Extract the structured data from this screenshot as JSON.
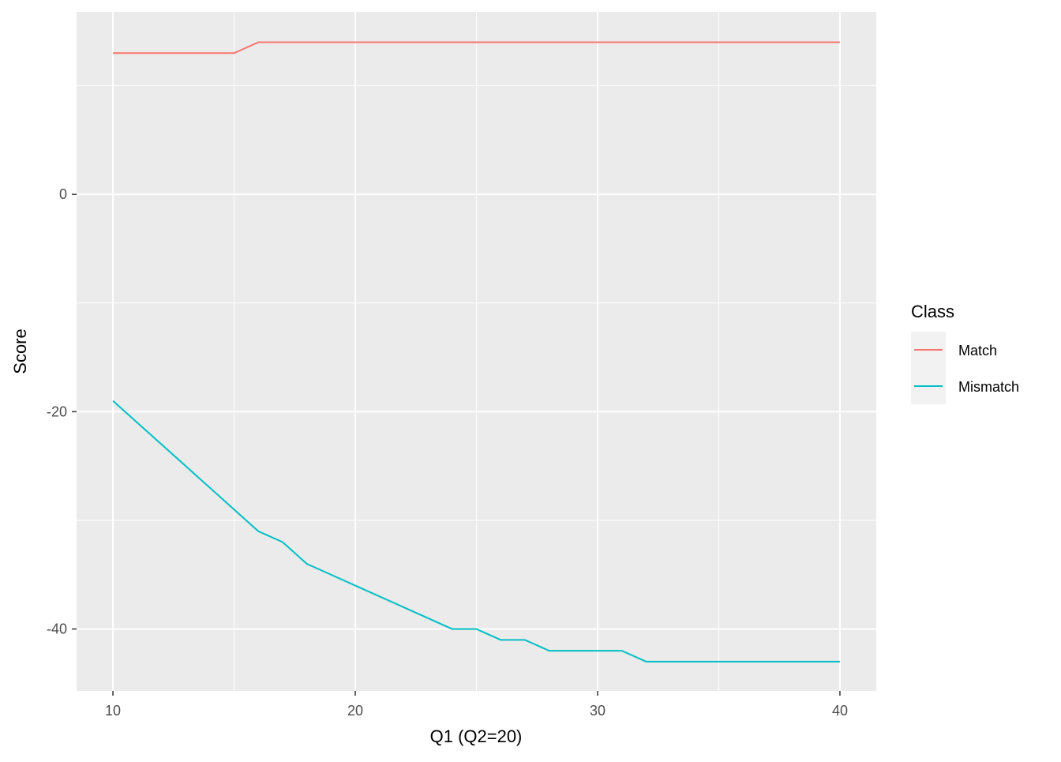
{
  "chart_data": {
    "type": "line",
    "title": "",
    "xlabel": "Q1 (Q2=20)",
    "ylabel": "Score",
    "xlim": [
      8.5,
      41.5
    ],
    "ylim": [
      -45.7,
      16.8
    ],
    "x_ticks": [
      10,
      20,
      30,
      40
    ],
    "x_minor": [
      15,
      25,
      35
    ],
    "y_ticks": [
      0,
      -20,
      -40
    ],
    "y_minor": [
      10,
      -10,
      -30
    ],
    "grid": true,
    "legend": {
      "title": "Class",
      "position": "right"
    },
    "x": [
      10,
      11,
      12,
      13,
      14,
      15,
      16,
      17,
      18,
      19,
      20,
      21,
      22,
      23,
      24,
      25,
      26,
      27,
      28,
      29,
      30,
      31,
      32,
      33,
      34,
      35,
      36,
      37,
      38,
      39,
      40
    ],
    "series": [
      {
        "name": "Match",
        "color": "#F8766D",
        "values": [
          13,
          13,
          13,
          13,
          13,
          13,
          14,
          14,
          14,
          14,
          14,
          14,
          14,
          14,
          14,
          14,
          14,
          14,
          14,
          14,
          14,
          14,
          14,
          14,
          14,
          14,
          14,
          14,
          14,
          14,
          14
        ]
      },
      {
        "name": "Mismatch",
        "color": "#00BFC4",
        "values": [
          -19,
          -21,
          -23,
          -25,
          -27,
          -29,
          -31,
          -32,
          -34,
          -35,
          -36,
          -37,
          -38,
          -39,
          -40,
          -40,
          -41,
          -41,
          -42,
          -42,
          -42,
          -42,
          -43,
          -43,
          -43,
          -43,
          -43,
          -43,
          -43,
          -43,
          -43
        ]
      }
    ]
  }
}
